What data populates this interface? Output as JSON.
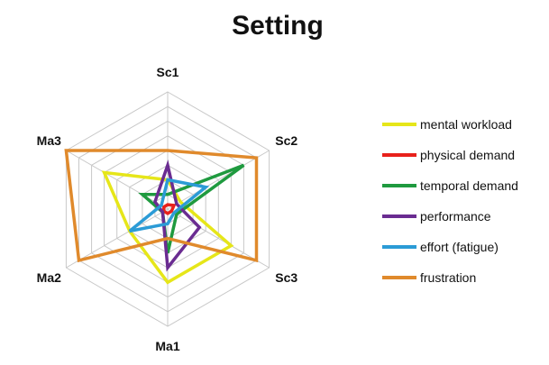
{
  "chart_data": {
    "type": "radar",
    "title": "Setting",
    "axes": [
      "Sc1",
      "Sc2",
      "Sc3",
      "Ma1",
      "Ma2",
      "Ma3"
    ],
    "rlim": [
      0,
      8
    ],
    "rings": 8,
    "grid": true,
    "legend_position": "right",
    "series": [
      {
        "name": "mental workload",
        "color": "#e6e619",
        "values": [
          2,
          1,
          5,
          5,
          3,
          5
        ]
      },
      {
        "name": "physical demand",
        "color": "#e8211b",
        "values": [
          0.3,
          0.5,
          0.3,
          0.3,
          0.3,
          0.3
        ]
      },
      {
        "name": "temporal demand",
        "color": "#1f9a3f",
        "values": [
          1,
          6,
          0.7,
          3,
          0.4,
          2
        ]
      },
      {
        "name": "performance",
        "color": "#6a2c91",
        "values": [
          3,
          0.7,
          2.5,
          4,
          0.4,
          1
        ]
      },
      {
        "name": "effort (fatigue)",
        "color": "#2b9bd6",
        "values": [
          2,
          3,
          0.5,
          1,
          3,
          0.5
        ]
      },
      {
        "name": "frustration",
        "color": "#e08a2c",
        "values": [
          4,
          7,
          7,
          2,
          7,
          8
        ]
      }
    ]
  }
}
